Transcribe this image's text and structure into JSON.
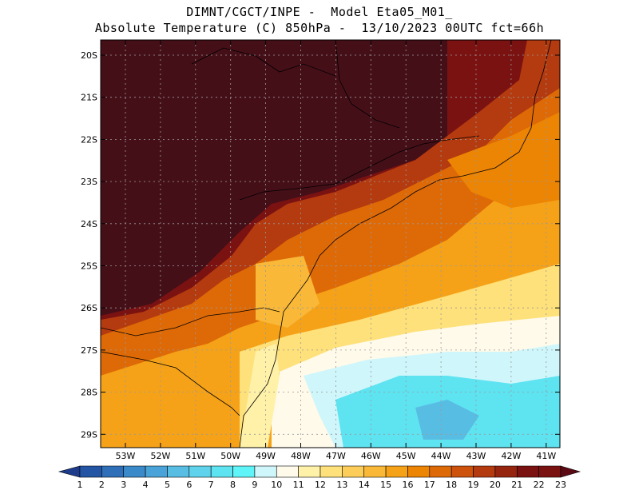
{
  "title": {
    "line1": "DIMNT/CGCT/INPE -  Model Eta05_M01_",
    "line2": "Absolute Temperature (C) 850hPa -  13/10/2023 00UTC fct=66h"
  },
  "map": {
    "lat_labels": [
      "20S",
      "21S",
      "22S",
      "23S",
      "24S",
      "25S",
      "26S",
      "27S",
      "28S",
      "29S"
    ],
    "lon_labels": [
      "53W",
      "52W",
      "51W",
      "50W",
      "49W",
      "48W",
      "47W",
      "46W",
      "45W",
      "44W",
      "43W",
      "42W",
      "41W"
    ],
    "grid": true
  },
  "colorbar": {
    "labels": [
      "1",
      "2",
      "3",
      "4",
      "5",
      "6",
      "7",
      "8",
      "9",
      "10",
      "11",
      "12",
      "13",
      "14",
      "15",
      "16",
      "17",
      "18",
      "19",
      "20",
      "21",
      "22",
      "23"
    ],
    "colors": [
      "#1e3c8c",
      "#2455a5",
      "#2e6fb8",
      "#3a89c9",
      "#4aa3d8",
      "#58bde3",
      "#5fd3ec",
      "#5ee3f1",
      "#5ff5f8",
      "#cff6fb",
      "#fffaea",
      "#fff1a8",
      "#fee17a",
      "#fdcd5a",
      "#f9b838",
      "#f5a218",
      "#ec8404",
      "#de6a07",
      "#cd520b",
      "#b43a0f",
      "#962510",
      "#7a1212",
      "#5b0a14"
    ]
  }
}
